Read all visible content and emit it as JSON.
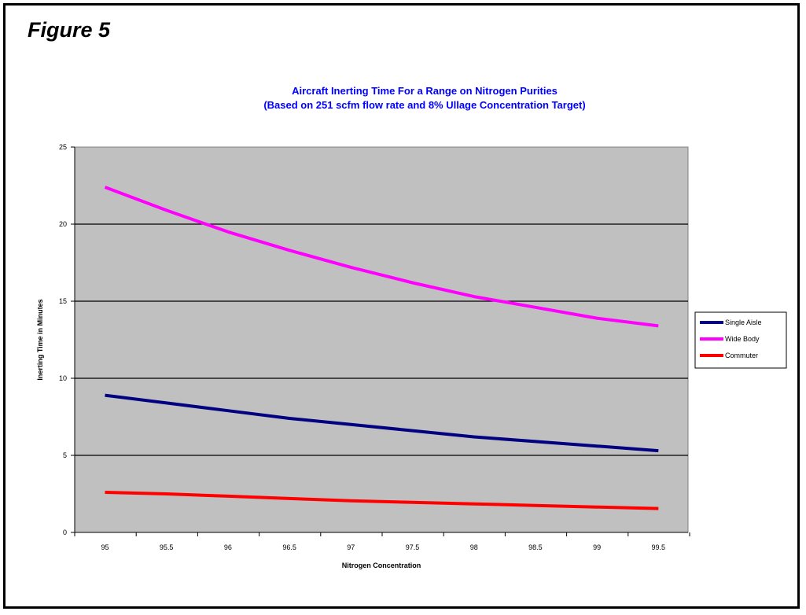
{
  "figure_label": "Figure 5",
  "chart_data": {
    "type": "line",
    "title": "Aircraft Inerting Time For a Range on Nitrogen Purities",
    "subtitle": "(Based on 251 scfm flow rate and 8% Ullage Concentration Target)",
    "xlabel": "Nitrogen Concentration",
    "ylabel": "Inerting Time in Minutes",
    "x": [
      95,
      95.5,
      96,
      96.5,
      97,
      97.5,
      98,
      98.5,
      99,
      99.5
    ],
    "x_tick_labels": [
      "95",
      "95.5",
      "96",
      "96.5",
      "97",
      "97.5",
      "98",
      "98.5",
      "99",
      "99.5"
    ],
    "ylim": [
      0,
      25
    ],
    "y_ticks": [
      0,
      5,
      10,
      15,
      20,
      25
    ],
    "y_tick_labels": [
      "0",
      "5",
      "10",
      "15",
      "20",
      "25"
    ],
    "grid": "horizontal major gridlines",
    "plot_background": "#c0c0c0",
    "legend_position": "right",
    "series": [
      {
        "name": "Single Aisle",
        "color": "#000080",
        "values": [
          8.9,
          8.4,
          7.9,
          7.4,
          7.0,
          6.6,
          6.2,
          5.9,
          5.6,
          5.3
        ]
      },
      {
        "name": "Wide Body",
        "color": "#ff00ff",
        "values": [
          22.4,
          20.9,
          19.5,
          18.3,
          17.2,
          16.2,
          15.3,
          14.6,
          13.9,
          13.4
        ]
      },
      {
        "name": "Commuter",
        "color": "#ff0000",
        "values": [
          2.6,
          2.5,
          2.35,
          2.2,
          2.05,
          1.95,
          1.85,
          1.75,
          1.65,
          1.55
        ]
      }
    ]
  }
}
